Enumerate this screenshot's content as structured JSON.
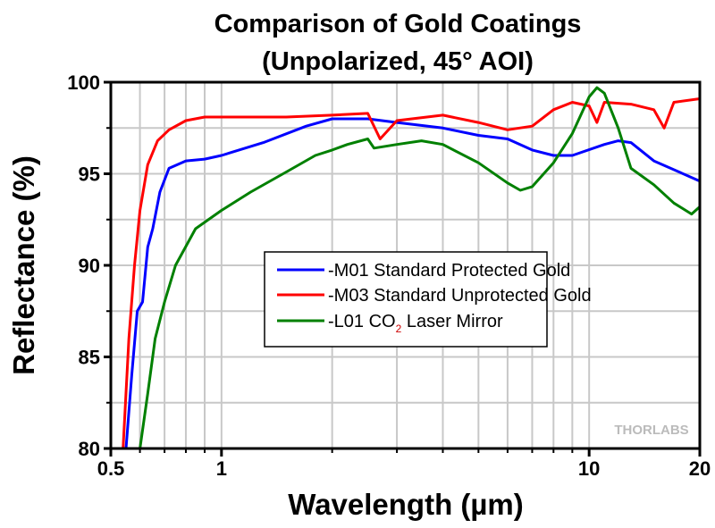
{
  "chart_data": {
    "type": "line",
    "title_line1": "Comparison of Gold Coatings",
    "title_line2": "(Unpolarized, 45° AOI)",
    "xlabel": "Wavelength (µm)",
    "ylabel": "Reflectance (%)",
    "xscale": "log",
    "xlim": [
      0.5,
      20
    ],
    "ylim": [
      80,
      100
    ],
    "xticks": [
      0.5,
      1,
      10,
      20
    ],
    "xtick_labels": [
      "0.5",
      "1",
      "10",
      "20"
    ],
    "yticks": [
      80,
      85,
      90,
      95,
      100
    ],
    "ytick_labels": [
      "80",
      "85",
      "90",
      "95",
      "100"
    ],
    "grid": true,
    "legend_placement": "center-right",
    "watermark": "THORLABS",
    "series": [
      {
        "name": "-M01 Standard Protected Gold",
        "color": "#0000ff",
        "x": [
          0.55,
          0.57,
          0.59,
          0.61,
          0.63,
          0.65,
          0.68,
          0.72,
          0.8,
          0.9,
          1.0,
          1.3,
          1.7,
          2.0,
          2.5,
          3,
          4,
          5,
          6,
          7,
          8,
          9,
          11,
          12,
          13,
          15,
          20
        ],
        "y": [
          80,
          84,
          87.5,
          88,
          91,
          92,
          94,
          95.3,
          95.7,
          95.8,
          96.0,
          96.7,
          97.6,
          98.0,
          98.0,
          97.8,
          97.5,
          97.1,
          96.9,
          96.3,
          96.0,
          96.0,
          96.6,
          96.8,
          96.7,
          95.7,
          94.6
        ]
      },
      {
        "name": "-M03 Standard Unprotected Gold",
        "color": "#ff0000",
        "x": [
          0.54,
          0.56,
          0.58,
          0.6,
          0.63,
          0.67,
          0.72,
          0.8,
          0.9,
          1,
          1.5,
          2,
          2.5,
          2.7,
          3,
          4,
          5,
          6,
          7,
          8,
          9,
          10,
          10.5,
          11,
          13,
          15,
          16,
          17,
          20
        ],
        "y": [
          80,
          86,
          90,
          93,
          95.5,
          96.8,
          97.4,
          97.9,
          98.1,
          98.1,
          98.1,
          98.2,
          98.3,
          96.9,
          97.9,
          98.2,
          97.8,
          97.4,
          97.6,
          98.5,
          98.9,
          98.7,
          97.8,
          98.9,
          98.8,
          98.5,
          97.5,
          98.9,
          99.1
        ]
      },
      {
        "name_prefix": "-L01 CO",
        "name_sub": "2",
        "name_suffix": " Laser Mirror",
        "color": "#008000",
        "x": [
          0.6,
          0.63,
          0.66,
          0.7,
          0.75,
          0.85,
          1,
          1.2,
          1.5,
          1.8,
          2.0,
          2.2,
          2.5,
          2.6,
          3,
          3.5,
          4,
          5,
          6,
          6.5,
          7,
          8,
          9,
          10,
          10.5,
          11,
          12,
          13,
          15,
          17,
          19,
          20
        ],
        "y": [
          80,
          83,
          86,
          88,
          90,
          92,
          93,
          94,
          95.1,
          96.0,
          96.3,
          96.6,
          96.9,
          96.4,
          96.6,
          96.8,
          96.6,
          95.6,
          94.5,
          94.1,
          94.3,
          95.6,
          97.2,
          99.2,
          99.7,
          99.4,
          97.5,
          95.3,
          94.4,
          93.4,
          92.8,
          93.2
        ]
      }
    ]
  }
}
